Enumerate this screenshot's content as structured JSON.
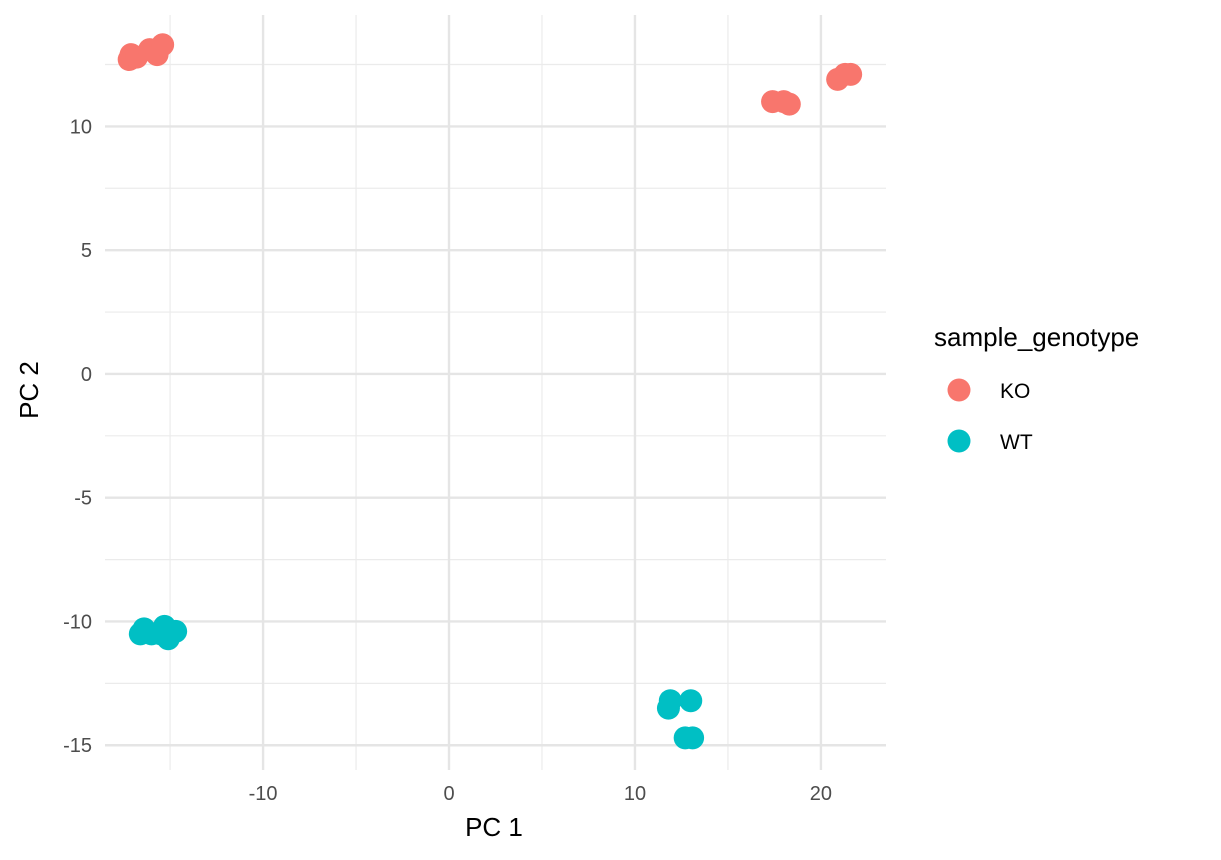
{
  "chart_data": {
    "type": "scatter",
    "xlabel": "PC 1",
    "ylabel": "PC 2",
    "xlim": [
      -18.5,
      23.5
    ],
    "ylim": [
      -16,
      14.5
    ],
    "x_ticks": [
      -10,
      0,
      10,
      20
    ],
    "x_tick_labels": [
      "-10",
      "0",
      "10",
      "20"
    ],
    "y_ticks": [
      -15,
      -10,
      -5,
      0,
      5,
      10
    ],
    "y_tick_labels": [
      "-15",
      "-10",
      "-5",
      "0",
      "5",
      "10"
    ],
    "grid": true,
    "legend": {
      "title": "sample_genotype",
      "placement": "right",
      "entries": [
        {
          "label": "KO",
          "color": "#F8766D"
        },
        {
          "label": "WT",
          "color": "#00BFC4"
        }
      ]
    },
    "series": [
      {
        "name": "KO",
        "color": "#F8766D",
        "points": [
          {
            "x": -17.2,
            "y": 12.7
          },
          {
            "x": -17.1,
            "y": 12.9
          },
          {
            "x": -16.8,
            "y": 12.8
          },
          {
            "x": -16.1,
            "y": 13.1
          },
          {
            "x": -15.7,
            "y": 12.9
          },
          {
            "x": -15.4,
            "y": 13.3
          },
          {
            "x": 17.4,
            "y": 11.0
          },
          {
            "x": 18.0,
            "y": 11.0
          },
          {
            "x": 18.3,
            "y": 10.9
          },
          {
            "x": 20.9,
            "y": 11.9
          },
          {
            "x": 21.3,
            "y": 12.1
          },
          {
            "x": 21.6,
            "y": 12.1
          }
        ]
      },
      {
        "name": "WT",
        "color": "#00BFC4",
        "points": [
          {
            "x": -16.6,
            "y": -10.5
          },
          {
            "x": -16.4,
            "y": -10.3
          },
          {
            "x": -16.0,
            "y": -10.5
          },
          {
            "x": -15.5,
            "y": -10.5
          },
          {
            "x": -15.3,
            "y": -10.2
          },
          {
            "x": -15.1,
            "y": -10.7
          },
          {
            "x": -14.7,
            "y": -10.4
          },
          {
            "x": 11.8,
            "y": -13.5
          },
          {
            "x": 11.9,
            "y": -13.2
          },
          {
            "x": 13.0,
            "y": -13.2
          },
          {
            "x": 12.7,
            "y": -14.7
          },
          {
            "x": 13.1,
            "y": -14.7
          }
        ]
      }
    ]
  }
}
